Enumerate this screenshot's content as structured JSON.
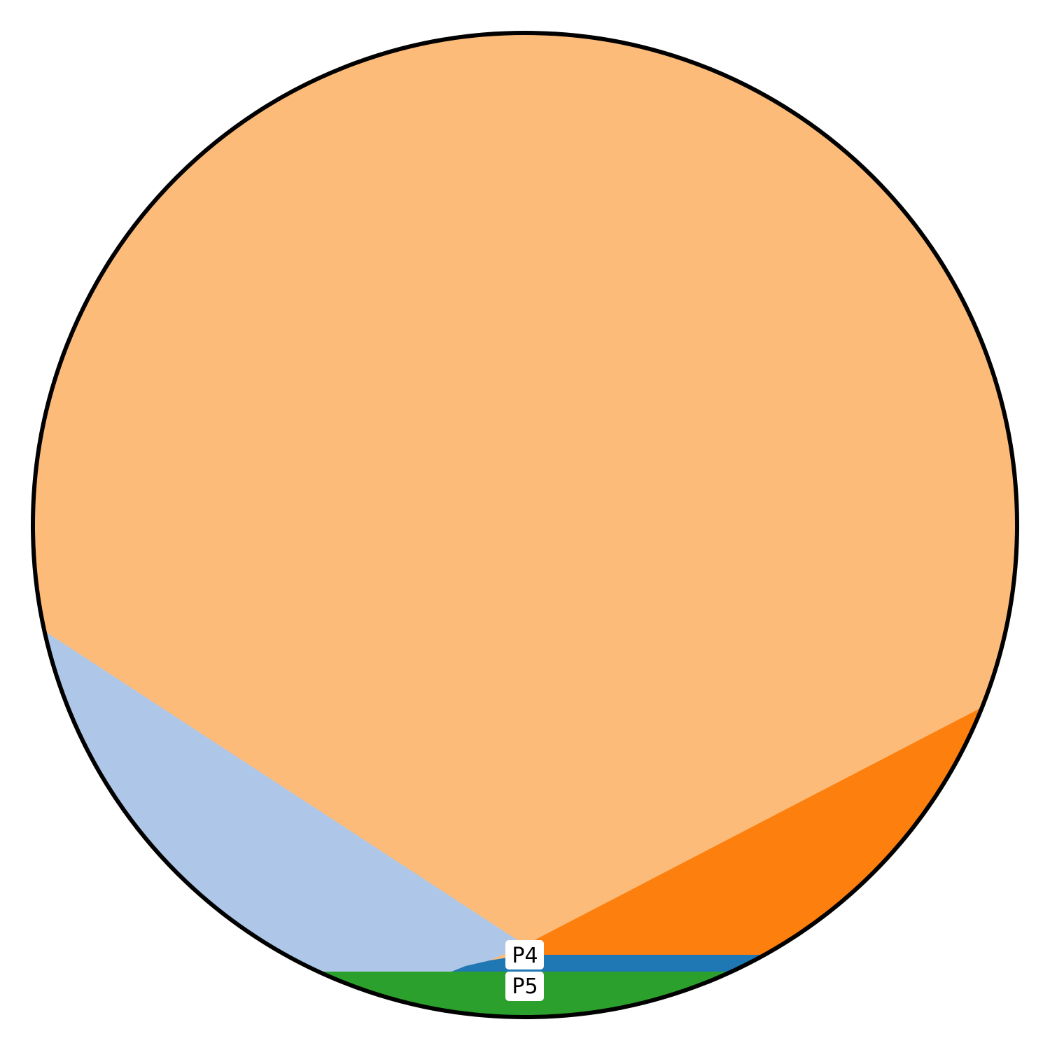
{
  "diagram": {
    "colors": {
      "background": "#ffffff",
      "outline": "#000000",
      "region_top": "#fdbb79",
      "region_left": "#aec7e8",
      "region_right": "#fd7f0e",
      "region_blue_band": "#1f77b4",
      "region_bottom": "#2ca02c"
    },
    "labels": {
      "p4": "P4",
      "p5": "P5"
    }
  }
}
